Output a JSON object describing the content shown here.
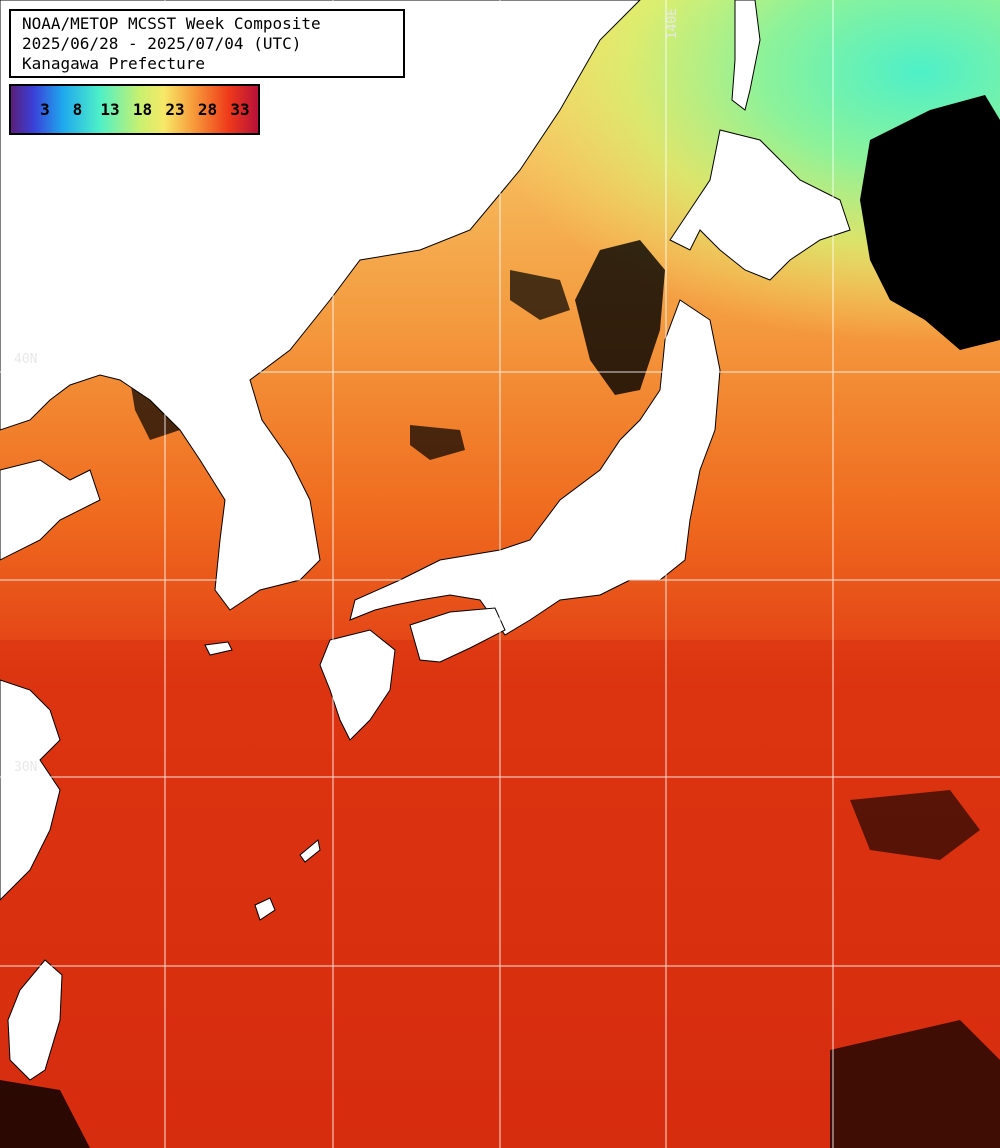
{
  "title": {
    "line1": "NOAA/METOP MCSST Week Composite",
    "line2": "2025/06/28 - 2025/07/04 (UTC)",
    "line3": "Kanagawa Prefecture"
  },
  "legend": {
    "unit": "",
    "ticks": [
      "3",
      "8",
      "13",
      "18",
      "23",
      "28",
      "33"
    ],
    "colors": [
      "#5a1f7a",
      "#3a3fd8",
      "#1fa8ee",
      "#4ef0c8",
      "#c8f070",
      "#f7e868",
      "#f79a3a",
      "#ef3a1a",
      "#b8103a"
    ]
  },
  "grid_labels": {
    "lat_40": "40N",
    "lat_30": "30N",
    "lon_140": "140E"
  },
  "colors": {
    "sea_warm": "#d32a0f",
    "sea_mid": "#f26a1e",
    "sea_cool": "#c8f070",
    "sea_cold": "#4ef0c8",
    "land": "#ffffff",
    "cloud": "#000000",
    "grid": "#ffffff"
  }
}
